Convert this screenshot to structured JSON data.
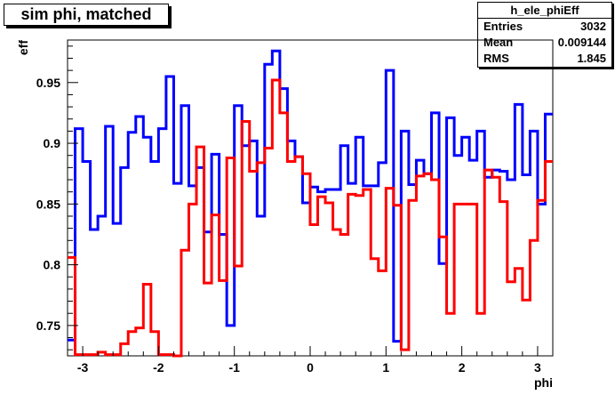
{
  "header": {
    "title": "sim phi, matched"
  },
  "stats": {
    "name": "h_ele_phiEff",
    "rows": [
      {
        "label": "Entries",
        "value": "3032"
      },
      {
        "label": "Mean",
        "value": "0.009144"
      },
      {
        "label": "RMS",
        "value": "1.845"
      }
    ]
  },
  "chart_data": {
    "type": "line",
    "title": "sim phi, matched",
    "xlabel": "phi",
    "ylabel": "eff",
    "xlim": [
      -3.2,
      3.2
    ],
    "ylim": [
      0.725,
      0.985
    ],
    "xticks": [
      -3,
      -2,
      -1,
      0,
      1,
      2,
      3
    ],
    "yticks": [
      0.75,
      0.8,
      0.85,
      0.9,
      0.95
    ],
    "ytick_labels": [
      "0.75",
      "0.8",
      "0.85",
      "0.9",
      "0.95"
    ],
    "bins": 64,
    "grid": false,
    "colors": {
      "blue": "#0000ff",
      "red": "#ff0000"
    },
    "series": [
      {
        "color": "#0000ff",
        "style": "step",
        "values": [
          0.738,
          0.912,
          0.885,
          0.829,
          0.84,
          0.914,
          0.834,
          0.88,
          0.909,
          0.922,
          0.905,
          0.885,
          0.912,
          0.955,
          0.867,
          0.931,
          0.865,
          0.88,
          0.827,
          0.891,
          0.825,
          0.75,
          0.931,
          0.898,
          0.902,
          0.84,
          0.965,
          0.976,
          0.945,
          0.902,
          0.889,
          0.851,
          0.864,
          0.86,
          0.862,
          0.862,
          0.898,
          0.867,
          0.905,
          0.865,
          0.865,
          0.884,
          0.96,
          0.737,
          0.91,
          0.866,
          0.886,
          0.875,
          0.925,
          0.801,
          0.921,
          0.89,
          0.905,
          0.886,
          0.91,
          0.872,
          0.878,
          0.877,
          0.87,
          0.932,
          0.874,
          0.91,
          0.85,
          0.924
        ]
      },
      {
        "color": "#ff0000",
        "style": "step",
        "values": [
          0.806,
          0.726,
          0.726,
          0.726,
          0.728,
          0.726,
          0.726,
          0.735,
          0.745,
          0.748,
          0.784,
          0.745,
          0.726,
          0.726,
          0.723,
          0.812,
          0.85,
          0.897,
          0.785,
          0.841,
          0.787,
          0.888,
          0.799,
          0.918,
          0.877,
          0.884,
          0.896,
          0.952,
          0.925,
          0.885,
          0.889,
          0.875,
          0.833,
          0.856,
          0.851,
          0.829,
          0.825,
          0.858,
          0.857,
          0.862,
          0.805,
          0.795,
          0.863,
          0.849,
          0.73,
          0.853,
          0.873,
          0.875,
          0.87,
          0.823,
          0.76,
          0.85,
          0.85,
          0.85,
          0.76,
          0.878,
          0.872,
          0.852,
          0.786,
          0.797,
          0.771,
          0.82,
          0.853,
          0.885
        ]
      }
    ]
  }
}
